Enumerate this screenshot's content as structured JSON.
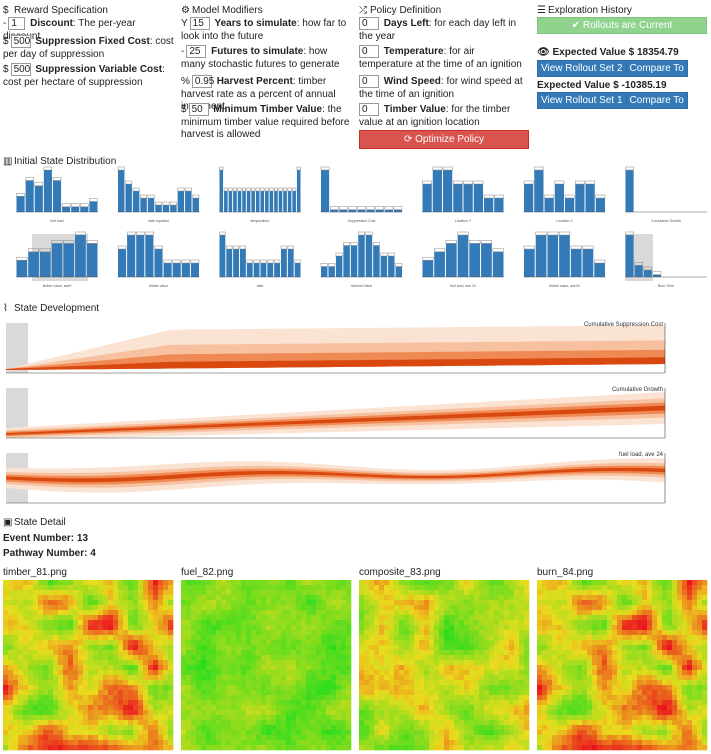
{
  "reward": {
    "title": "Reward Specification",
    "title_icon": "dollar-icon",
    "discount": {
      "prefix": "-",
      "value": "1",
      "label": "Discount",
      "desc": ": The per-year discount"
    },
    "fixed": {
      "prefix": "$",
      "value": "500",
      "label": "Suppression Fixed Cost",
      "desc": ": cost per day of suppression"
    },
    "variable": {
      "prefix": "$",
      "value": "500",
      "label": "Suppression Variable Cost",
      "desc": ": cost per hectare of suppression"
    }
  },
  "modifiers": {
    "title": "Model Modifiers",
    "title_icon": "gear-icon",
    "years": {
      "prefix": "Y",
      "value": "15",
      "label": "Years to simulate",
      "desc": ": how far to look into the future"
    },
    "futures": {
      "prefix": "-",
      "value": "25",
      "label": "Futures to simulate",
      "desc": ": how many stochastic futures to generate"
    },
    "harvest": {
      "prefix": "%",
      "value": "0.95",
      "label": "Harvest Percent",
      "desc": ": timber harvest rate as a percent of annual increment"
    },
    "timber": {
      "prefix": "$",
      "value": "50",
      "label": "Minimum Timber Value",
      "desc": ": the minimum timber value required before harvest is allowed"
    }
  },
  "policy": {
    "title": "Policy Definition",
    "title_icon": "random-icon",
    "days": {
      "value": "0",
      "label": "Days Left",
      "desc": ": for each day left in the year"
    },
    "temp": {
      "value": "0",
      "label": "Temperature",
      "desc": ": for air temperature at the time of an ignition"
    },
    "wind": {
      "value": "0",
      "label": "Wind Speed",
      "desc": ": for wind speed at the time of an ignition"
    },
    "tvalue": {
      "value": "0",
      "label": "Timber Value",
      "desc": ": for the timber value at an ignition location"
    },
    "optimize": "Optimize Policy"
  },
  "history": {
    "title": "Exploration History",
    "title_icon": "list-icon",
    "current": "Rollouts are Current",
    "ev1": "Expected Value $ 18354.79",
    "btn_set2": "View Rollout Set 2",
    "btn_cmp1": "Compare To",
    "ev2": "Expected Value $ -10385.19",
    "btn_set1": "View Rollout Set 1",
    "btn_cmp2": "Compare To"
  },
  "initial": {
    "title": "Initial State Distribution",
    "title_icon": "bar-chart-icon"
  },
  "development": {
    "title": "State Development",
    "title_icon": "line-chart-icon",
    "labels": [
      "Cumulative Suppression Cost",
      "Cumulative Growth",
      "fuel load, ave 24"
    ]
  },
  "detail": {
    "title": "State Detail",
    "title_icon": "picture-icon",
    "event": "Event Number: 13",
    "pathway": "Pathway Number: 4",
    "images": [
      "timber_81.png",
      "fuel_82.png",
      "composite_83.png",
      "burn_84.png"
    ]
  },
  "colors": {
    "accent_blue": "#337ab7",
    "danger_red": "#d9534f",
    "success_green": "#8fd38f",
    "band_orange": "#e8561a"
  },
  "chart_data": [
    {
      "type": "bar",
      "xlabel": "fuel load",
      "values": [
        3,
        6,
        5,
        8,
        6,
        1,
        1,
        1,
        2
      ]
    },
    {
      "type": "bar",
      "xlabel": "date equated",
      "values": [
        6,
        4,
        3,
        2,
        2,
        1,
        1,
        1,
        3,
        3,
        2
      ]
    },
    {
      "type": "bar",
      "xlabel": "temperature",
      "values": [
        2,
        1,
        1,
        1,
        1,
        1,
        1,
        1,
        1,
        1,
        1,
        1,
        1,
        1,
        1,
        1,
        1,
        2
      ]
    },
    {
      "type": "bar",
      "xlabel": "Suppression Cost",
      "values": [
        18,
        1,
        1,
        1,
        1,
        1,
        1,
        1,
        1
      ]
    },
    {
      "type": "bar",
      "xlabel": "Location Y",
      "values": [
        2,
        3,
        3,
        2,
        2,
        2,
        1,
        1
      ]
    },
    {
      "type": "bar",
      "xlabel": "Location X",
      "values": [
        2,
        3,
        1,
        2,
        1,
        2,
        2,
        1
      ]
    },
    {
      "type": "bar",
      "xlabel": "Cumulative Growth",
      "values": [
        26,
        0,
        0,
        0,
        0,
        0,
        0,
        0,
        0
      ]
    },
    {
      "type": "bar",
      "xlabel": "timber value, ave9",
      "values": [
        2,
        3,
        3,
        4,
        4,
        5,
        4
      ]
    },
    {
      "type": "bar",
      "xlabel": "timber value",
      "values": [
        2,
        3,
        3,
        3,
        2,
        1,
        1,
        1,
        1
      ]
    },
    {
      "type": "bar",
      "xlabel": "date",
      "values": [
        3,
        2,
        2,
        2,
        1,
        1,
        1,
        1,
        1,
        2,
        2,
        1
      ]
    },
    {
      "type": "bar",
      "xlabel": "Harvest Value",
      "values": [
        1,
        1,
        2,
        3,
        3,
        4,
        4,
        3,
        2,
        2,
        1
      ]
    },
    {
      "type": "bar",
      "xlabel": "fuel load, ave 24",
      "values": [
        2,
        3,
        4,
        5,
        4,
        4,
        3
      ]
    },
    {
      "type": "bar",
      "xlabel": "timber value, ave25",
      "values": [
        2,
        3,
        3,
        3,
        2,
        2,
        1
      ]
    },
    {
      "type": "bar",
      "xlabel": "Burn Time",
      "values": [
        18,
        5,
        3,
        1,
        0,
        0,
        0,
        0,
        0
      ]
    }
  ]
}
